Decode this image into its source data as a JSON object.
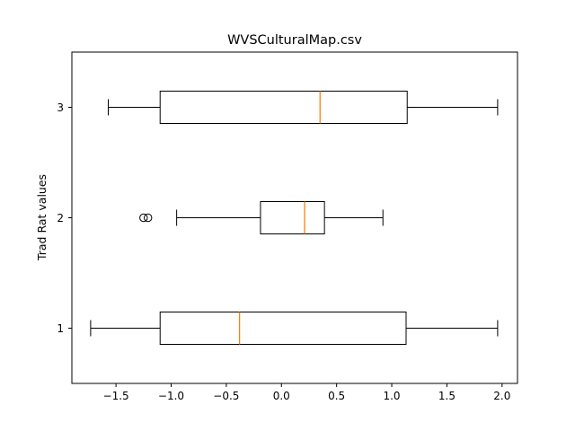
{
  "chart_data": {
    "type": "boxplot",
    "orientation": "horizontal",
    "title": "WVSCulturalMap.csv",
    "xlabel": "",
    "ylabel": "Trad Rat values",
    "xlim": [
      -1.9,
      2.14
    ],
    "ylim": [
      0.5,
      3.5
    ],
    "xticks": [
      -1.5,
      -1.0,
      -0.5,
      0.0,
      0.5,
      1.0,
      1.5,
      2.0
    ],
    "xtick_labels": [
      "−1.5",
      "−1.0",
      "−0.5",
      "0.0",
      "0.5",
      "1.0",
      "1.5",
      "2.0"
    ],
    "yticks": [
      1,
      2,
      3
    ],
    "ytick_labels": [
      "1",
      "2",
      "3"
    ],
    "grid": false,
    "boxes": [
      {
        "category": "1",
        "whisker_low": -1.73,
        "q1": -1.1,
        "median": -0.38,
        "q3": 1.13,
        "whisker_high": 1.96,
        "outliers": []
      },
      {
        "category": "2",
        "whisker_low": -0.95,
        "q1": -0.19,
        "median": 0.21,
        "q3": 0.39,
        "whisker_high": 0.92,
        "outliers": [
          -1.25,
          -1.21
        ]
      },
      {
        "category": "3",
        "whisker_low": -1.57,
        "q1": -1.1,
        "median": 0.35,
        "q3": 1.14,
        "whisker_high": 1.96,
        "outliers": []
      }
    ],
    "colors": {
      "box": "#000000",
      "median": "#ff7f0e",
      "outlier": "#000000"
    }
  }
}
